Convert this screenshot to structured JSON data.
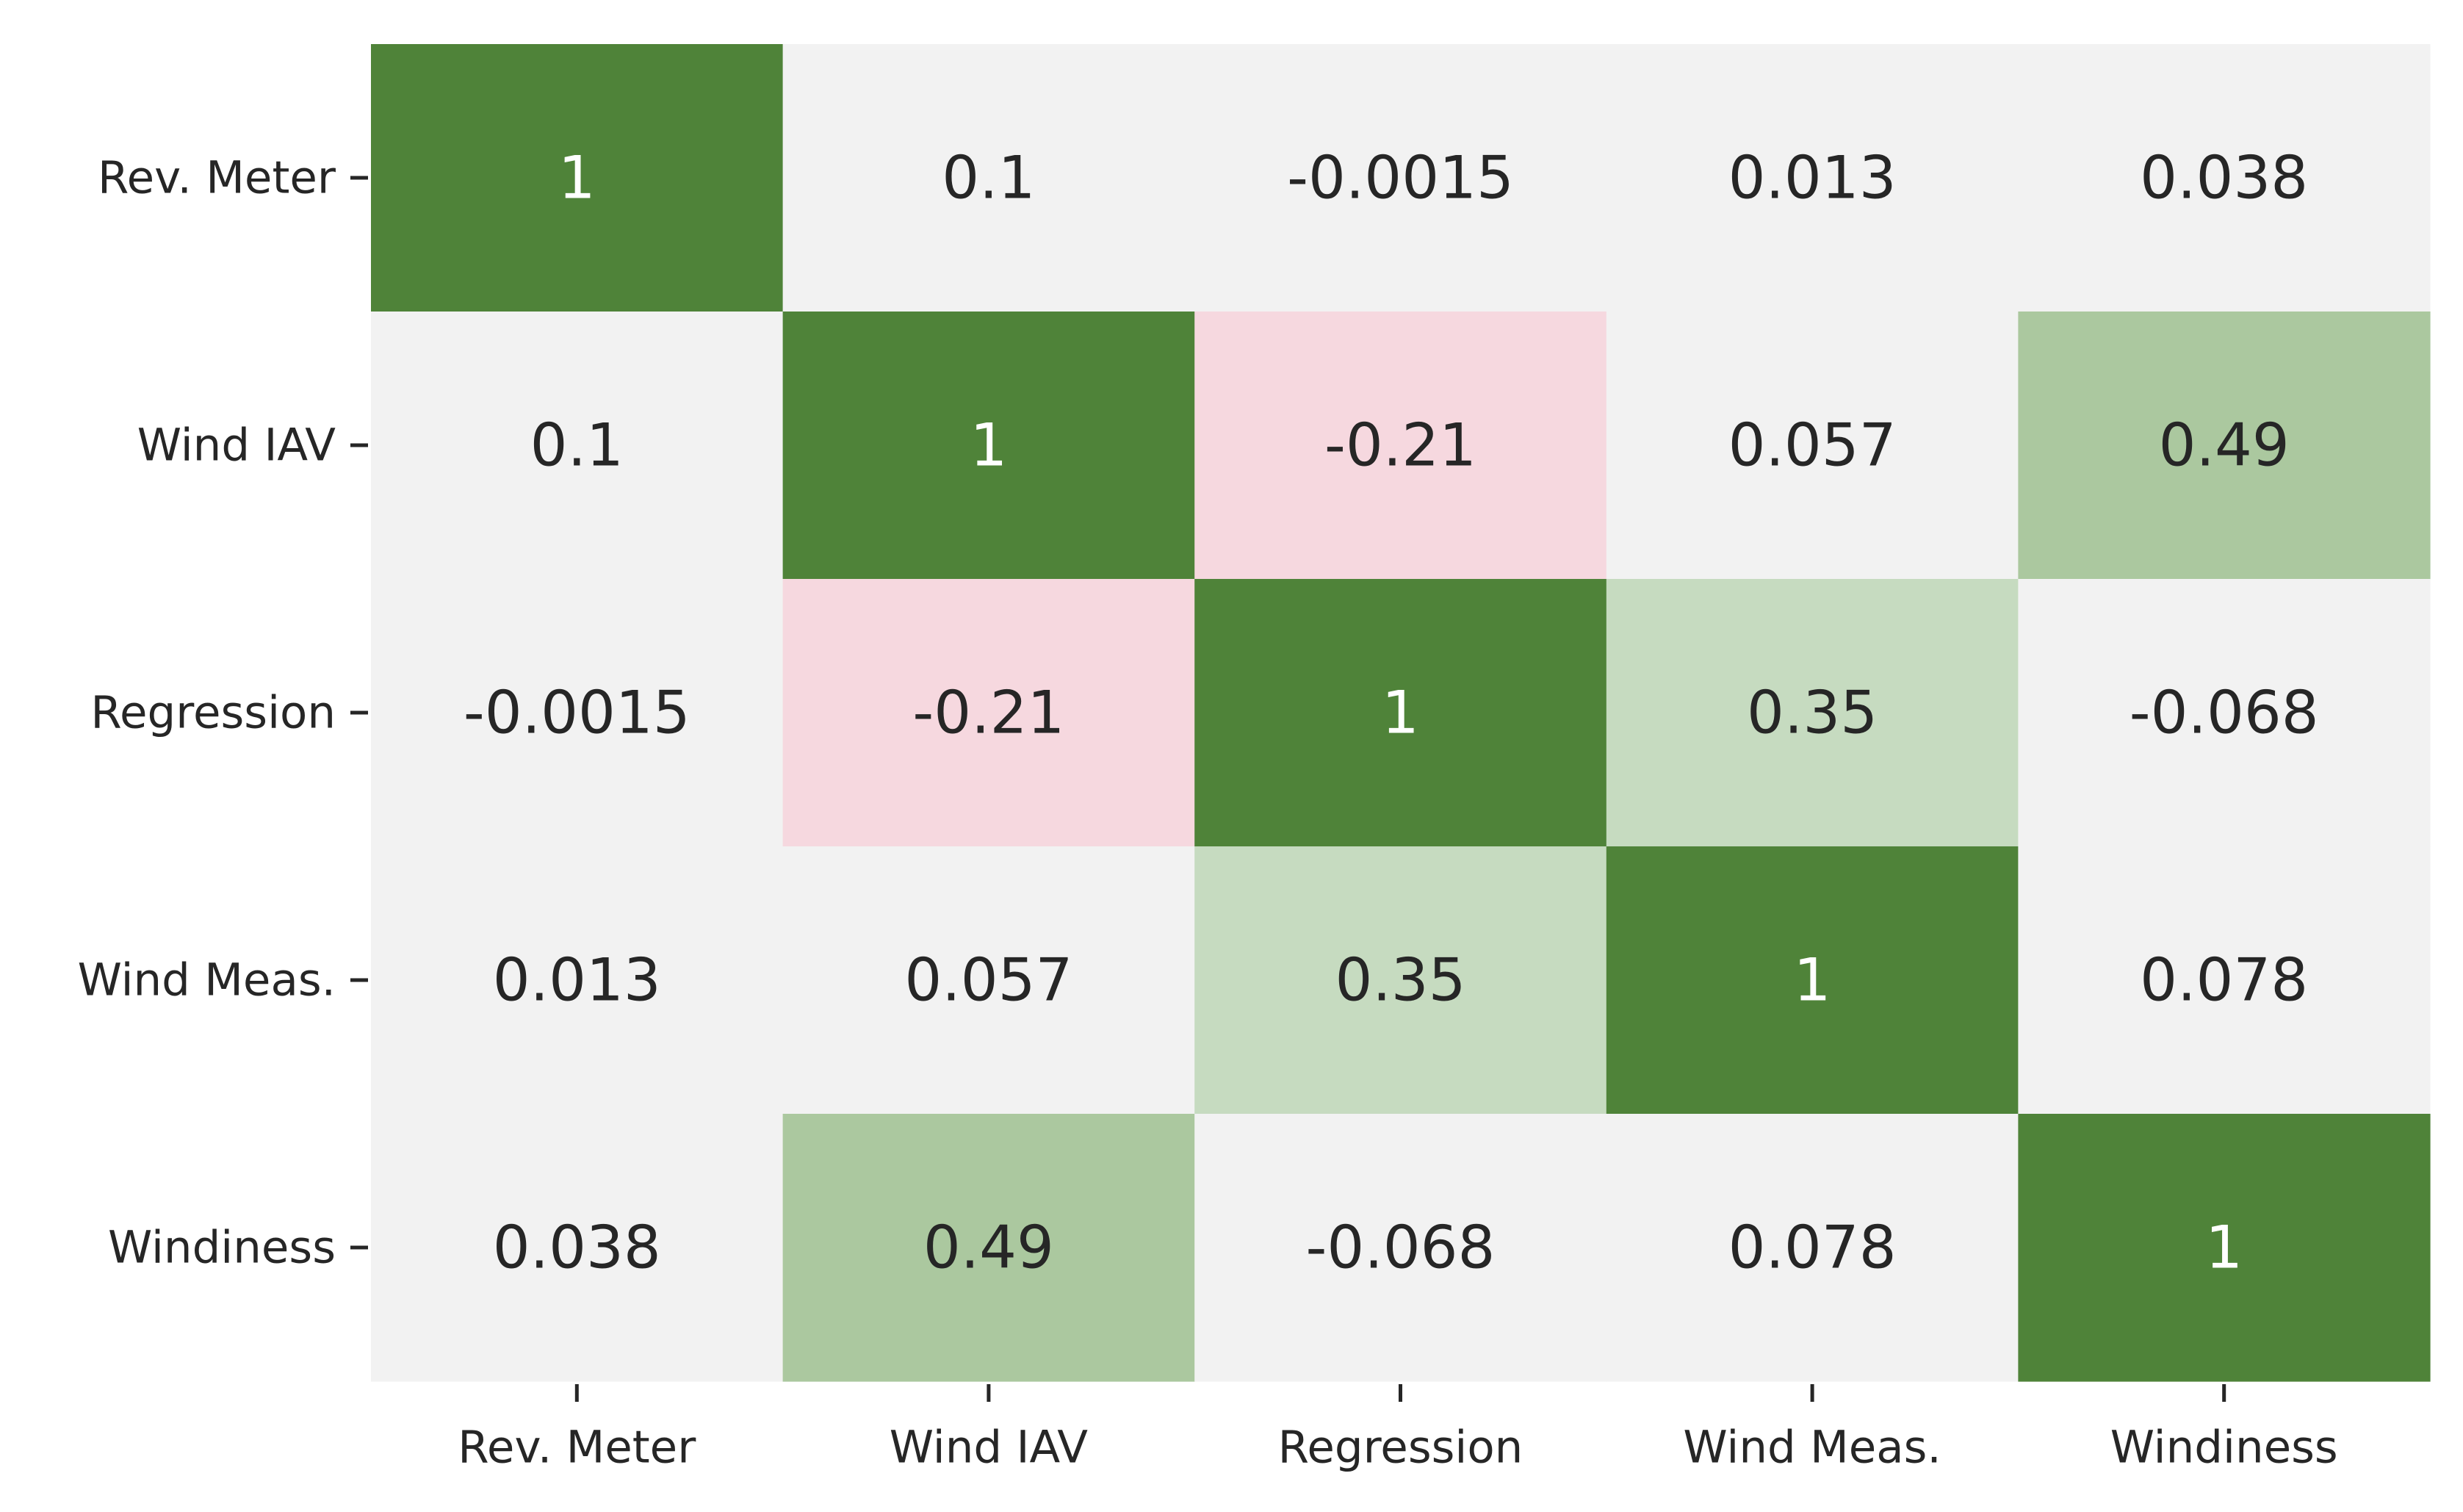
{
  "chart_data": {
    "type": "heatmap",
    "title": "",
    "xlabel": "",
    "ylabel": "",
    "x_categories": [
      "Rev. Meter",
      "Wind IAV",
      "Regression",
      "Wind Meas.",
      "Windiness"
    ],
    "y_categories": [
      "Rev. Meter",
      "Wind IAV",
      "Regression",
      "Wind Meas.",
      "Windiness"
    ],
    "values": [
      [
        1,
        0.1,
        -0.0015,
        0.013,
        0.038
      ],
      [
        0.1,
        1,
        -0.21,
        0.057,
        0.49
      ],
      [
        -0.0015,
        -0.21,
        1,
        0.35,
        -0.068
      ],
      [
        0.013,
        0.057,
        0.35,
        1,
        0.078
      ],
      [
        0.038,
        0.49,
        -0.068,
        0.078,
        1
      ]
    ],
    "cell_labels": [
      [
        "1",
        "0.1",
        "-0.0015",
        "0.013",
        "0.038"
      ],
      [
        "0.1",
        "1",
        "-0.21",
        "0.057",
        "0.49"
      ],
      [
        "-0.0015",
        "-0.21",
        "1",
        "0.35",
        "-0.068"
      ],
      [
        "0.013",
        "0.057",
        "0.35",
        "1",
        "0.078"
      ],
      [
        "0.038",
        "0.49",
        "-0.068",
        "0.078",
        "1"
      ]
    ],
    "colorbar": false,
    "grid": false,
    "colors": {
      "neutral": "#f2f2f2",
      "positive_strong": "#4f8339",
      "positive_medium": "#abc89f",
      "positive_light": "#c6dbc0",
      "negative_light": "#f6d8df",
      "text_dark": "#262626",
      "text_light": "#ffffff"
    }
  }
}
